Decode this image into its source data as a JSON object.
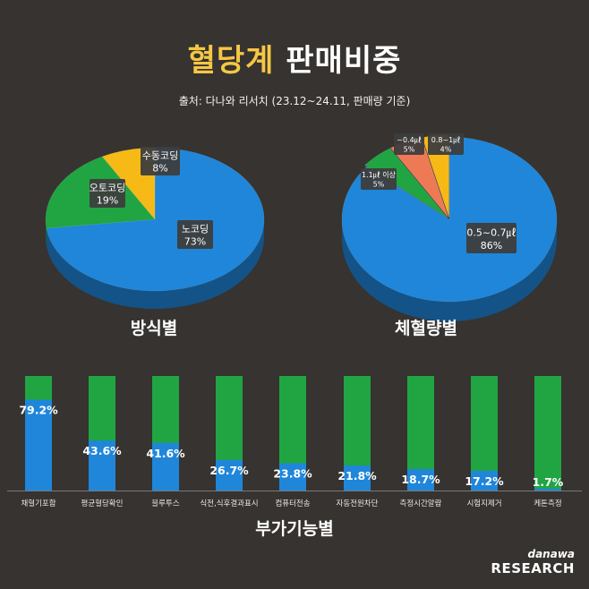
{
  "title": {
    "highlight": "혈당계",
    "rest": "판매비중"
  },
  "subtitle": "출처: 다나와 리서치 (23.12~24.11, 판매량 기준)",
  "colors": {
    "blue": "#1f86da",
    "green": "#20a542",
    "yellow": "#f7b915",
    "orange": "#ee7a55",
    "label_bg": "#3d3d3d",
    "bg": "#363330"
  },
  "chart_data": [
    {
      "type": "pie",
      "title": "방식별",
      "slices": [
        {
          "label": "노코딩",
          "value": 73,
          "text": "73%",
          "color": "blue"
        },
        {
          "label": "오토코딩",
          "value": 19,
          "text": "19%",
          "color": "green"
        },
        {
          "label": "수동코딩",
          "value": 8,
          "text": "8%",
          "color": "yellow"
        }
      ]
    },
    {
      "type": "pie",
      "title": "체혈량별",
      "slices": [
        {
          "label": "0.5~0.7㎕",
          "value": 86,
          "text": "86%",
          "color": "blue"
        },
        {
          "label": "1.1㎕ 이상",
          "value": 5,
          "text": "5%",
          "color": "green"
        },
        {
          "label": "~0.4㎕",
          "value": 5,
          "text": "5%",
          "color": "orange"
        },
        {
          "label": "0.8~1㎕",
          "value": 4,
          "text": "4%",
          "color": "yellow"
        }
      ]
    },
    {
      "type": "bar",
      "title": "부가기능별",
      "stacked_to": 100,
      "categories": [
        "채혈기포함",
        "평균혈당확인",
        "블루투스",
        "식전,식후결과표시",
        "컴퓨터전송",
        "자동전원차단",
        "측정시간알람",
        "시험지제거",
        "케톤측정"
      ],
      "values": [
        79.2,
        43.6,
        41.6,
        26.7,
        23.8,
        21.8,
        18.7,
        17.2,
        1.7
      ],
      "value_labels": [
        "79.2%",
        "43.6%",
        "41.6%",
        "26.7%",
        "23.8%",
        "21.8%",
        "18.7%",
        "17.2%",
        "1.7%"
      ],
      "ylim": [
        0,
        100
      ]
    }
  ],
  "logo": {
    "top": "danawa",
    "bottom": "RESEARCH"
  }
}
